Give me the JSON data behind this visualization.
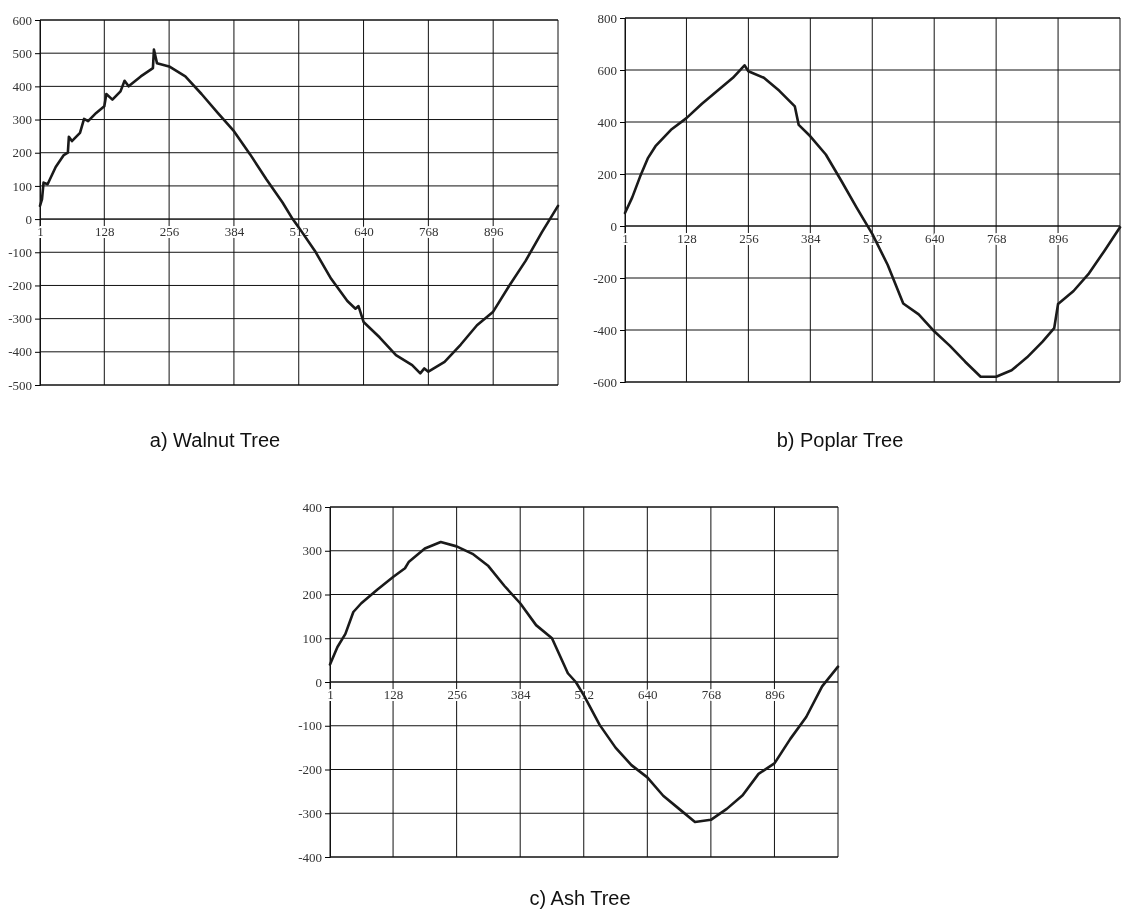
{
  "chart_data": [
    {
      "type": "line",
      "title": "a) Walnut Tree",
      "grid": true,
      "xlim": [
        1,
        1024
      ],
      "ylim": [
        -500,
        600
      ],
      "xticks": [
        1,
        128,
        256,
        384,
        512,
        640,
        768,
        896
      ],
      "yticks": [
        -500,
        -400,
        -300,
        -200,
        -100,
        0,
        100,
        200,
        300,
        400,
        500,
        600
      ],
      "series": [
        {
          "color": "#1a1a1a",
          "x": [
            1,
            5,
            8,
            16,
            32,
            48,
            56,
            58,
            64,
            80,
            88,
            96,
            112,
            128,
            132,
            144,
            160,
            168,
            176,
            200,
            224,
            226,
            232,
            256,
            288,
            320,
            352,
            384,
            416,
            448,
            480,
            500,
            512,
            544,
            576,
            608,
            624,
            630,
            640,
            672,
            704,
            736,
            752,
            760,
            768,
            800,
            832,
            864,
            896,
            928,
            960,
            992,
            1024
          ],
          "values": [
            40,
            60,
            110,
            105,
            157,
            193,
            200,
            248,
            235,
            260,
            302,
            295,
            320,
            340,
            377,
            360,
            385,
            417,
            400,
            430,
            455,
            511,
            470,
            460,
            430,
            377,
            320,
            265,
            195,
            120,
            50,
            0,
            -25,
            -96,
            -180,
            -247,
            -270,
            -262,
            -310,
            -357,
            -410,
            -440,
            -465,
            -450,
            -460,
            -430,
            -378,
            -320,
            -279,
            -200,
            -126,
            -40,
            40
          ]
        }
      ]
    },
    {
      "type": "line",
      "title": "b) Poplar Tree",
      "grid": true,
      "xlim": [
        1,
        1024
      ],
      "ylim": [
        -600,
        800
      ],
      "xticks": [
        1,
        128,
        256,
        384,
        512,
        640,
        768,
        896
      ],
      "yticks": [
        -600,
        -400,
        -200,
        0,
        200,
        400,
        600,
        800
      ],
      "series": [
        {
          "color": "#1a1a1a",
          "x": [
            1,
            16,
            32,
            48,
            64,
            96,
            128,
            160,
            192,
            224,
            248,
            256,
            288,
            320,
            352,
            360,
            384,
            416,
            448,
            480,
            512,
            544,
            576,
            608,
            640,
            672,
            704,
            736,
            768,
            800,
            832,
            864,
            888,
            896,
            928,
            960,
            992,
            1024
          ],
          "values": [
            50,
            110,
            189,
            260,
            307,
            370,
            415,
            470,
            520,
            570,
            618,
            595,
            570,
            520,
            460,
            389,
            345,
            275,
            174,
            70,
            -30,
            -150,
            -298,
            -340,
            -405,
            -460,
            -522,
            -580,
            -580,
            -555,
            -505,
            -445,
            -393,
            -300,
            -250,
            -182,
            -95,
            -5
          ]
        }
      ]
    },
    {
      "type": "line",
      "title": "c) Ash Tree",
      "grid": true,
      "xlim": [
        1,
        1024
      ],
      "ylim": [
        -400,
        400
      ],
      "xticks": [
        1,
        128,
        256,
        384,
        512,
        640,
        768,
        896
      ],
      "yticks": [
        -400,
        -300,
        -200,
        -100,
        0,
        100,
        200,
        300,
        400
      ],
      "series": [
        {
          "color": "#1a1a1a",
          "x": [
            1,
            16,
            32,
            48,
            64,
            96,
            128,
            152,
            160,
            192,
            224,
            256,
            288,
            320,
            352,
            384,
            416,
            448,
            480,
            496,
            512,
            544,
            576,
            608,
            640,
            672,
            704,
            736,
            768,
            800,
            832,
            864,
            896,
            928,
            960,
            992,
            1024
          ],
          "values": [
            40,
            80,
            110,
            160,
            180,
            211,
            240,
            260,
            275,
            305,
            320,
            310,
            293,
            265,
            220,
            180,
            130,
            100,
            20,
            0,
            -30,
            -98,
            -150,
            -190,
            -218,
            -260,
            -290,
            -320,
            -315,
            -290,
            -259,
            -210,
            -186,
            -130,
            -80,
            -10,
            35
          ]
        }
      ]
    }
  ]
}
